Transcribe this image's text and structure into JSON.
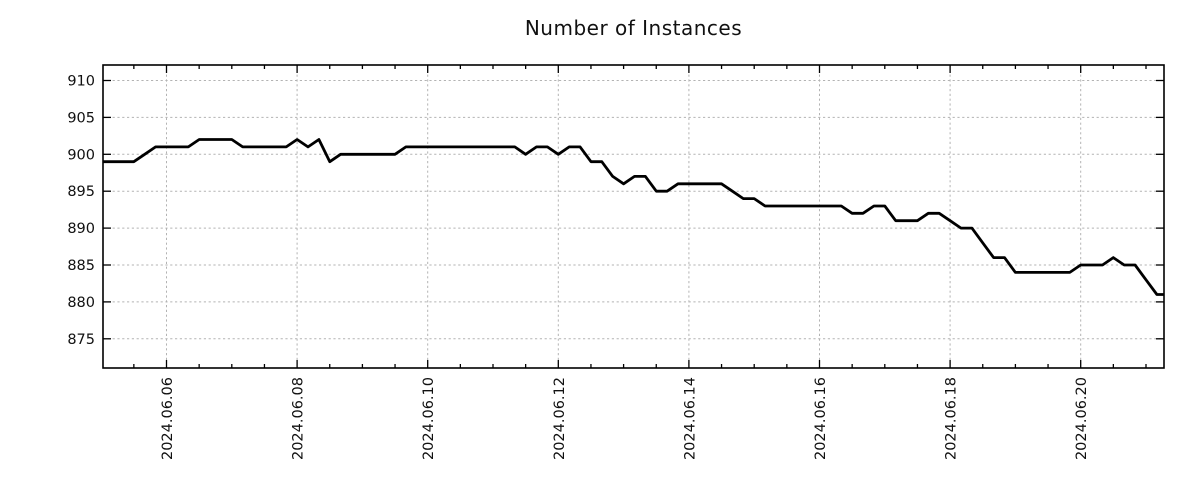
{
  "title": "Number of Instances",
  "chart_data": {
    "type": "line",
    "title": "Number of Instances",
    "xlabel": "",
    "ylabel": "",
    "x_start": "2024-06-05 00:00",
    "x_step_hours": 4,
    "values": [
      899,
      899,
      899,
      899,
      900,
      901,
      901,
      901,
      901,
      902,
      902,
      902,
      902,
      901,
      901,
      901,
      901,
      901,
      902,
      901,
      902,
      899,
      900,
      900,
      900,
      900,
      900,
      900,
      901,
      901,
      901,
      901,
      901,
      901,
      901,
      901,
      901,
      901,
      901,
      900,
      901,
      901,
      900,
      901,
      901,
      899,
      899,
      897,
      896,
      897,
      897,
      895,
      895,
      896,
      896,
      896,
      896,
      896,
      895,
      894,
      894,
      893,
      893,
      893,
      893,
      893,
      893,
      893,
      893,
      892,
      892,
      893,
      893,
      891,
      891,
      891,
      892,
      892,
      891,
      890,
      890,
      888,
      886,
      886,
      884,
      884,
      884,
      884,
      884,
      884,
      885,
      885,
      885,
      886,
      885,
      885,
      883,
      881,
      881
    ],
    "x_tick_labels": [
      "2024.06.06",
      "2024.06.08",
      "2024.06.10",
      "2024.06.12",
      "2024.06.14",
      "2024.06.16",
      "2024.06.18",
      "2024.06.20"
    ],
    "x_major_tick_interval_days": 2,
    "x_minor_tick_interval_hours": 12,
    "y_ticks": [
      875,
      880,
      885,
      890,
      895,
      900,
      905,
      910
    ],
    "ylim": [
      871,
      912.1
    ],
    "grid": true,
    "legend": "none",
    "line_color": "#000000",
    "grid_color": "#b3b3b3",
    "axis_color": "#000000",
    "background": "#ffffff"
  }
}
